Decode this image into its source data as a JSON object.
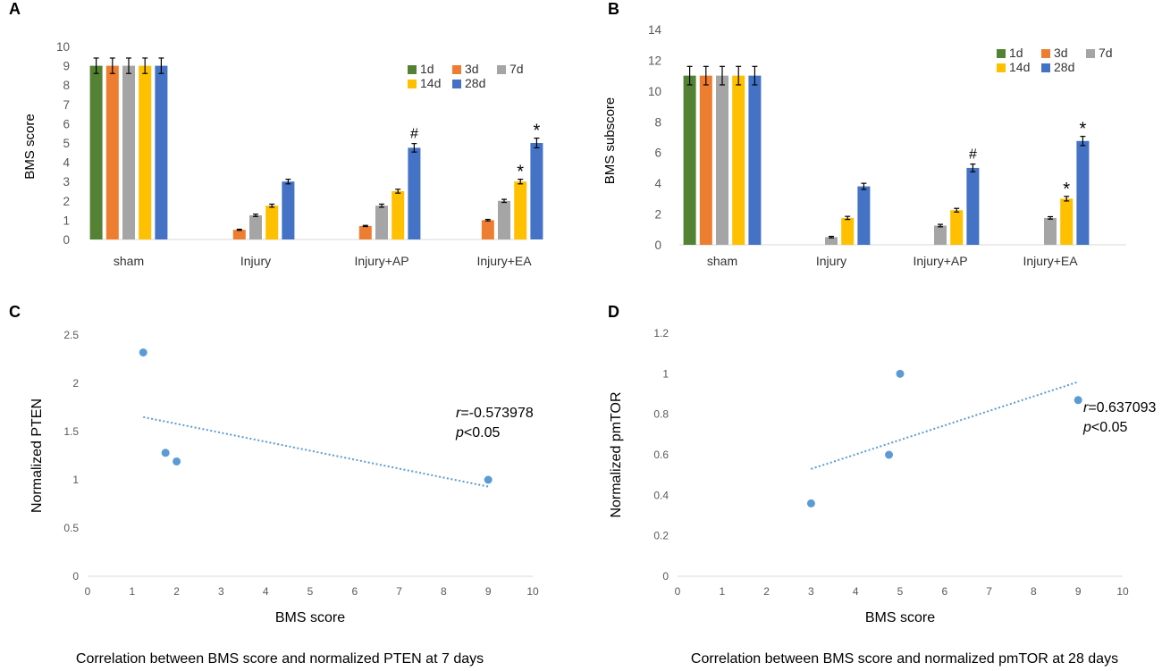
{
  "colors": {
    "1d": "#548235",
    "3d": "#ED7D31",
    "7d": "#A5A5A5",
    "14d": "#FFC000",
    "28d": "#4472C4",
    "scatter": "#5B9BD5",
    "axis": "#D9D9D9",
    "text": "#595959"
  },
  "chart_data": [
    {
      "panel": "A",
      "type": "bar",
      "ylabel": "BMS score",
      "xlabel": "",
      "ylim": [
        0,
        10
      ],
      "yticks": [
        "0",
        "1",
        "2",
        "3",
        "4",
        "5",
        "6",
        "7",
        "8",
        "9",
        "10"
      ],
      "categories": [
        "sham",
        "Injury",
        "Injury+AP",
        "Injury+EA"
      ],
      "series": [
        {
          "name": "1d",
          "key": "1d",
          "values": [
            9,
            0,
            0,
            0
          ],
          "errors": [
            0.4,
            0,
            0,
            0
          ]
        },
        {
          "name": "3d",
          "key": "3d",
          "values": [
            9,
            0.5,
            0.7,
            1.0
          ],
          "errors": [
            0.4,
            0.03,
            0.03,
            0.04
          ]
        },
        {
          "name": "7d",
          "key": "7d",
          "values": [
            9,
            1.25,
            1.75,
            2.0
          ],
          "errors": [
            0.4,
            0.06,
            0.08,
            0.08
          ]
        },
        {
          "name": "14d",
          "key": "14d",
          "values": [
            9,
            1.75,
            2.5,
            3.0
          ],
          "errors": [
            0.4,
            0.08,
            0.1,
            0.12
          ]
        },
        {
          "name": "28d",
          "key": "28d",
          "values": [
            9,
            3.0,
            4.75,
            5.0
          ],
          "errors": [
            0.4,
            0.12,
            0.22,
            0.25
          ]
        }
      ],
      "annotations": [
        {
          "category": 2,
          "series": 4,
          "text": "#"
        },
        {
          "category": 3,
          "series": 3,
          "text": "*"
        },
        {
          "category": 3,
          "series": 4,
          "text": "*"
        }
      ],
      "legend": [
        "1d",
        "3d",
        "7d",
        "14d",
        "28d"
      ],
      "legend_position": "top-right"
    },
    {
      "panel": "B",
      "type": "bar",
      "ylabel": "BMS subscore",
      "xlabel": "",
      "ylim": [
        0,
        14
      ],
      "yticks": [
        "0",
        "2",
        "4",
        "6",
        "8",
        "10",
        "12",
        "14"
      ],
      "categories": [
        "sham",
        "Injury",
        "Injury+AP",
        "Injury+EA"
      ],
      "series": [
        {
          "name": "1d",
          "key": "1d",
          "values": [
            11,
            0,
            0,
            0
          ],
          "errors": [
            0.6,
            0,
            0,
            0
          ]
        },
        {
          "name": "3d",
          "key": "3d",
          "values": [
            11,
            0,
            0,
            0
          ],
          "errors": [
            0.6,
            0,
            0,
            0
          ]
        },
        {
          "name": "7d",
          "key": "7d",
          "values": [
            11,
            0.5,
            1.25,
            1.75
          ],
          "errors": [
            0.6,
            0.05,
            0.08,
            0.08
          ]
        },
        {
          "name": "14d",
          "key": "14d",
          "values": [
            11,
            1.75,
            2.25,
            3.0
          ],
          "errors": [
            0.6,
            0.1,
            0.12,
            0.15
          ]
        },
        {
          "name": "28d",
          "key": "28d",
          "values": [
            11,
            3.8,
            5.0,
            6.75
          ],
          "errors": [
            0.6,
            0.2,
            0.25,
            0.3
          ]
        }
      ],
      "annotations": [
        {
          "category": 2,
          "series": 4,
          "text": "#"
        },
        {
          "category": 3,
          "series": 3,
          "text": "*"
        },
        {
          "category": 3,
          "series": 4,
          "text": "*"
        }
      ],
      "legend": [
        "1d",
        "3d",
        "7d",
        "14d",
        "28d"
      ],
      "legend_position": "top-right"
    },
    {
      "panel": "C",
      "type": "scatter",
      "xlabel": "BMS score",
      "ylabel": "Normalized PTEN",
      "xlim": [
        0,
        10
      ],
      "ylim": [
        0,
        2.5
      ],
      "xticks": [
        "0",
        "1",
        "2",
        "3",
        "4",
        "5",
        "6",
        "7",
        "8",
        "9",
        "10"
      ],
      "yticks": [
        "0",
        "0.5",
        "1",
        "1.5",
        "2",
        "2.5"
      ],
      "points": [
        [
          1.25,
          2.32
        ],
        [
          1.75,
          1.28
        ],
        [
          2.0,
          1.19
        ],
        [
          9.0,
          1.0
        ]
      ],
      "trendline": [
        [
          1.25,
          1.65
        ],
        [
          9.0,
          0.93
        ]
      ],
      "r_label": "r",
      "r_value": "=-0.573978",
      "p_label": "p",
      "p_value": "<0.05",
      "caption": "Correlation between BMS score and normalized PTEN at 7 days"
    },
    {
      "panel": "D",
      "type": "scatter",
      "xlabel": "BMS score",
      "ylabel": "Normalized pmTOR",
      "xlim": [
        0,
        10
      ],
      "ylim": [
        0,
        1.2
      ],
      "xticks": [
        "0",
        "1",
        "2",
        "3",
        "4",
        "5",
        "6",
        "7",
        "8",
        "9",
        "10"
      ],
      "yticks": [
        "0",
        "0.2",
        "0.4",
        "0.6",
        "0.8",
        "1",
        "1.2"
      ],
      "points": [
        [
          3.0,
          0.36
        ],
        [
          4.75,
          0.6
        ],
        [
          5.0,
          1.0
        ],
        [
          9.0,
          0.87
        ]
      ],
      "trendline": [
        [
          3.0,
          0.53
        ],
        [
          9.0,
          0.96
        ]
      ],
      "r_label": "r",
      "r_value": "=0.637093",
      "p_label": "p",
      "p_value": "<0.05",
      "caption": "Correlation between BMS score and normalized pmTOR at 28 days"
    }
  ]
}
